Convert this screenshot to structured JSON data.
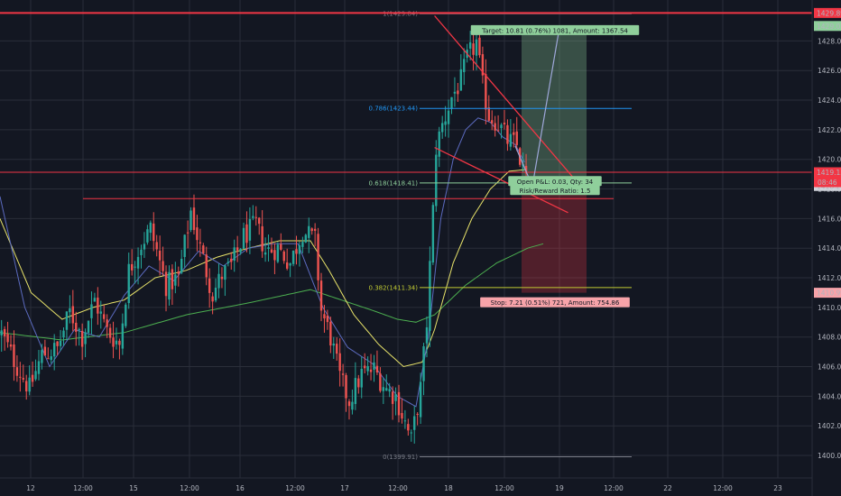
{
  "chart_data": {
    "type": "candlestick",
    "title": "",
    "x_axis": {
      "tick_labels": [
        "12",
        "12:00",
        "15",
        "12:00",
        "16",
        "12:00",
        "17",
        "12:00",
        "18",
        "12:00",
        "19",
        "12:00",
        "22",
        "12:00",
        "23"
      ]
    },
    "y_axis": {
      "range": [
        1398.6,
        1430.4
      ],
      "tick_labels": [
        "1400.00",
        "1402.00",
        "1404.00",
        "1406.00",
        "1408.00",
        "1410.00",
        "1412.00",
        "1414.00",
        "1416.00",
        "1418.00",
        "1420.00",
        "1422.00",
        "1424.00",
        "1426.00",
        "1428.00"
      ],
      "price_tags": [
        {
          "value": 1429.89,
          "label": "1429.89",
          "bg": "#f23645",
          "fg": "#ffffff"
        },
        {
          "value": 1429.01,
          "label": "1429.01",
          "bg": "#8fcf9b",
          "fg": "#131722"
        },
        {
          "value": 1419.13,
          "label": "1419.13",
          "bg": "#f23645",
          "fg": "#ffffff"
        },
        {
          "value": 1418.2,
          "label": "1418.20",
          "bg": "#d1d4dc",
          "fg": "#131722"
        },
        {
          "value": 1410.99,
          "label": "1410.99",
          "bg": "#f7a3a9",
          "fg": "#131722"
        }
      ],
      "countdown": "08:46"
    },
    "fibonacci": [
      {
        "ratio_label": "1(1429.84)",
        "value": 1429.84,
        "color": "#787b86"
      },
      {
        "ratio_label": "0.786(1423.44)",
        "value": 1423.44,
        "color": "#2196f3"
      },
      {
        "ratio_label": "0.618(1418.41)",
        "value": 1418.41,
        "color": "#8fcf9b"
      },
      {
        "ratio_label": "0.382(1411.34)",
        "value": 1411.34,
        "color": "#c0ca33"
      },
      {
        "ratio_label": "0(1399.91)",
        "value": 1399.91,
        "color": "#787b86"
      }
    ],
    "horizontal_lines": [
      {
        "value": 1429.89,
        "color": "#f23645"
      },
      {
        "value": 1419.13,
        "color": "#f23645"
      },
      {
        "value": 1417.35,
        "color": "#f23645"
      }
    ],
    "trend_lines": [
      {
        "from": {
          "bar": 140,
          "price": 1429.7
        },
        "to": {
          "bar": 187,
          "price": 1418.2
        },
        "color": "#f23645"
      },
      {
        "from": {
          "bar": 140,
          "price": 1420.8
        },
        "to": {
          "bar": 183,
          "price": 1416.4
        },
        "color": "#f23645"
      }
    ],
    "position": {
      "entry": 1418.2,
      "target_price": 1429.01,
      "stop_price": 1410.99,
      "target_label": "Target: 10.81 (0.76%) 1081, Amount: 1367.54",
      "stop_label": "Stop: 7.21 (0.51%) 721, Amount: 754.86",
      "pnl_label": "Open P&L: 0.03, Qty: 34",
      "rr_label": "Risk/Reward Ratio: 1.5"
    },
    "projection_path": [
      {
        "bar": 168,
        "price": 1420.9
      },
      {
        "bar": 174,
        "price": 1418.2
      },
      {
        "bar": 189,
        "price": 1428.9
      }
    ],
    "colors": {
      "background": "#131722",
      "up": "#26a69a",
      "down": "#ef5350",
      "ema_fast": "#5c6bc0",
      "ema_mid": "#e8e36a",
      "ema_slow": "#4caf50",
      "grid": "#2a2e39"
    },
    "ohlc_anchors": [
      [
        0,
        1408.2
      ],
      [
        5,
        1406.0
      ],
      [
        9,
        1404.5
      ],
      [
        13,
        1406.8
      ],
      [
        18,
        1407.2
      ],
      [
        22,
        1409.7
      ],
      [
        26,
        1408.0
      ],
      [
        30,
        1410.5
      ],
      [
        34,
        1408.4
      ],
      [
        38,
        1407.5
      ],
      [
        41,
        1412.5
      ],
      [
        45,
        1414.3
      ],
      [
        48,
        1415.3
      ],
      [
        50,
        1413.8
      ],
      [
        53,
        1411.5
      ],
      [
        57,
        1412.0
      ],
      [
        61,
        1416.5
      ],
      [
        64,
        1414.0
      ],
      [
        68,
        1410.9
      ],
      [
        71,
        1412.2
      ],
      [
        74,
        1412.8
      ],
      [
        78,
        1414.8
      ],
      [
        82,
        1415.6
      ],
      [
        85,
        1413.8
      ],
      [
        89,
        1414.0
      ],
      [
        93,
        1413.0
      ],
      [
        97,
        1415.2
      ],
      [
        101,
        1414.5
      ],
      [
        103,
        1409.8
      ],
      [
        106,
        1408.0
      ],
      [
        109,
        1405.2
      ],
      [
        112,
        1403.7
      ],
      [
        116,
        1405.5
      ],
      [
        120,
        1405.8
      ],
      [
        124,
        1404.5
      ],
      [
        127,
        1404.0
      ],
      [
        130,
        1402.2
      ],
      [
        132,
        1401.0
      ],
      [
        135,
        1404.5
      ],
      [
        137,
        1409.0
      ],
      [
        139,
        1416.5
      ],
      [
        140,
        1420.8
      ],
      [
        142,
        1422.3
      ],
      [
        145,
        1424.2
      ],
      [
        148,
        1425.3
      ],
      [
        150,
        1426.8
      ],
      [
        153,
        1427.9
      ],
      [
        155,
        1424.9
      ],
      [
        157,
        1423.0
      ],
      [
        160,
        1422.4
      ],
      [
        163,
        1421.3
      ],
      [
        166,
        1420.9
      ],
      [
        168,
        1419.2
      ],
      [
        169,
        1418.8
      ]
    ],
    "ema_fast_anchors": [
      [
        0,
        1417.5
      ],
      [
        8,
        1410.0
      ],
      [
        16,
        1406.0
      ],
      [
        24,
        1408.5
      ],
      [
        32,
        1408.0
      ],
      [
        40,
        1410.8
      ],
      [
        48,
        1412.8
      ],
      [
        56,
        1411.8
      ],
      [
        64,
        1413.8
      ],
      [
        72,
        1412.8
      ],
      [
        80,
        1414.0
      ],
      [
        88,
        1414.3
      ],
      [
        96,
        1414.3
      ],
      [
        104,
        1410.0
      ],
      [
        112,
        1407.3
      ],
      [
        120,
        1406.2
      ],
      [
        128,
        1404.0
      ],
      [
        134,
        1403.3
      ],
      [
        138,
        1408.0
      ],
      [
        142,
        1416.0
      ],
      [
        146,
        1420.0
      ],
      [
        150,
        1422.0
      ],
      [
        154,
        1422.8
      ],
      [
        158,
        1422.5
      ],
      [
        162,
        1421.5
      ],
      [
        166,
        1421.0
      ],
      [
        169,
        1419.8
      ]
    ],
    "ema_mid_anchors": [
      [
        0,
        1416.0
      ],
      [
        10,
        1411.0
      ],
      [
        20,
        1409.2
      ],
      [
        30,
        1410.0
      ],
      [
        40,
        1410.5
      ],
      [
        50,
        1412.0
      ],
      [
        60,
        1412.5
      ],
      [
        70,
        1413.4
      ],
      [
        80,
        1414.0
      ],
      [
        90,
        1414.5
      ],
      [
        100,
        1414.5
      ],
      [
        106,
        1412.5
      ],
      [
        114,
        1409.5
      ],
      [
        122,
        1407.5
      ],
      [
        130,
        1406.0
      ],
      [
        136,
        1406.3
      ],
      [
        140,
        1408.5
      ],
      [
        146,
        1413.0
      ],
      [
        152,
        1416.0
      ],
      [
        158,
        1418.0
      ],
      [
        164,
        1419.2
      ],
      [
        169,
        1419.3
      ]
    ],
    "ema_slow_anchors": [
      [
        0,
        1408.3
      ],
      [
        20,
        1407.8
      ],
      [
        40,
        1408.3
      ],
      [
        60,
        1409.5
      ],
      [
        80,
        1410.3
      ],
      [
        100,
        1411.2
      ],
      [
        110,
        1410.5
      ],
      [
        120,
        1409.8
      ],
      [
        128,
        1409.2
      ],
      [
        134,
        1409.0
      ],
      [
        140,
        1409.5
      ],
      [
        150,
        1411.5
      ],
      [
        160,
        1413.0
      ],
      [
        170,
        1414.0
      ],
      [
        175,
        1414.3
      ]
    ]
  }
}
